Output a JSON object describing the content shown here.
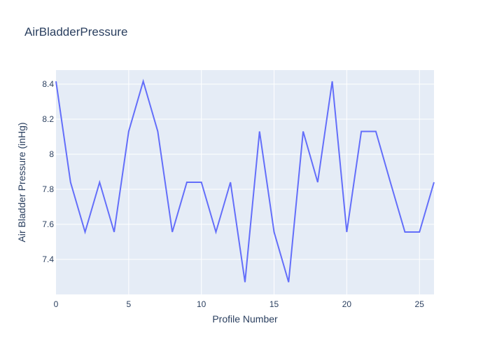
{
  "chart_data": {
    "type": "line",
    "title": "AirBladderPressure",
    "xlabel": "Profile Number",
    "ylabel": "Air Bladder Pressure (inHg)",
    "xlim": [
      0,
      26
    ],
    "ylim": [
      7.2,
      8.48
    ],
    "xticks": [
      0,
      5,
      10,
      15,
      20,
      25
    ],
    "xtick_labels": [
      "0",
      "5",
      "10",
      "15",
      "20",
      "25"
    ],
    "yticks": [
      7.4,
      7.6,
      7.8,
      8.0,
      8.2,
      8.4
    ],
    "ytick_labels": [
      "7.4",
      "7.6",
      "7.8",
      "8",
      "8.2",
      "8.4"
    ],
    "grid": true,
    "line_color": "#636efa",
    "x": [
      0,
      1,
      2,
      3,
      4,
      5,
      6,
      7,
      8,
      9,
      10,
      11,
      12,
      13,
      14,
      15,
      16,
      17,
      18,
      19,
      20,
      21,
      22,
      23,
      24,
      25,
      26
    ],
    "y": [
      8.416,
      7.84,
      7.556,
      7.84,
      7.556,
      8.13,
      8.416,
      8.13,
      7.556,
      7.84,
      7.84,
      7.556,
      7.84,
      7.27,
      8.13,
      7.556,
      7.27,
      8.13,
      7.84,
      8.416,
      7.556,
      8.13,
      8.13,
      7.84,
      7.556,
      7.556,
      7.84
    ]
  }
}
